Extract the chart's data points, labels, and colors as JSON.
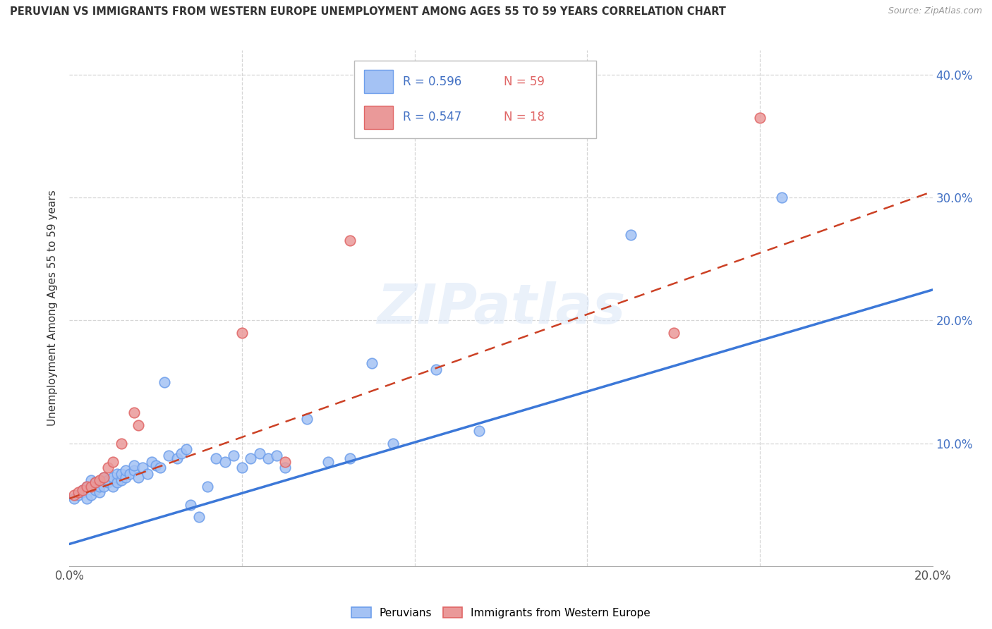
{
  "title": "PERUVIAN VS IMMIGRANTS FROM WESTERN EUROPE UNEMPLOYMENT AMONG AGES 55 TO 59 YEARS CORRELATION CHART",
  "source": "Source: ZipAtlas.com",
  "ylabel": "Unemployment Among Ages 55 to 59 years",
  "xlim": [
    0.0,
    0.2
  ],
  "ylim": [
    0.0,
    0.42
  ],
  "x_ticks": [
    0.0,
    0.04,
    0.08,
    0.12,
    0.16,
    0.2
  ],
  "x_tick_labels": [
    "0.0%",
    "",
    "",
    "",
    "",
    "20.0%"
  ],
  "y_ticks": [
    0.0,
    0.1,
    0.2,
    0.3,
    0.4
  ],
  "right_y_tick_labels": [
    "",
    "10.0%",
    "20.0%",
    "30.0%",
    "40.0%"
  ],
  "peruvian_color": "#a4c2f4",
  "immigrant_color": "#ea9999",
  "peruvian_edge_color": "#6d9eeb",
  "immigrant_edge_color": "#e06666",
  "peruvian_line_color": "#3c78d8",
  "immigrant_line_color": "#cc4125",
  "legend_r_peruvian": "0.596",
  "legend_n_peruvian": "59",
  "legend_r_immigrant": "0.547",
  "legend_n_immigrant": "18",
  "watermark": "ZIPatlas",
  "peruvian_scatter_x": [
    0.001,
    0.002,
    0.003,
    0.003,
    0.004,
    0.004,
    0.005,
    0.005,
    0.006,
    0.006,
    0.007,
    0.007,
    0.008,
    0.008,
    0.009,
    0.009,
    0.01,
    0.01,
    0.011,
    0.011,
    0.012,
    0.012,
    0.013,
    0.013,
    0.014,
    0.015,
    0.015,
    0.016,
    0.017,
    0.018,
    0.019,
    0.02,
    0.021,
    0.022,
    0.023,
    0.025,
    0.026,
    0.027,
    0.028,
    0.03,
    0.032,
    0.034,
    0.036,
    0.038,
    0.04,
    0.042,
    0.044,
    0.046,
    0.048,
    0.05,
    0.055,
    0.06,
    0.065,
    0.07,
    0.075,
    0.085,
    0.095,
    0.13,
    0.165
  ],
  "peruvian_scatter_y": [
    0.055,
    0.058,
    0.06,
    0.062,
    0.055,
    0.065,
    0.058,
    0.07,
    0.062,
    0.068,
    0.06,
    0.065,
    0.065,
    0.072,
    0.068,
    0.07,
    0.065,
    0.072,
    0.068,
    0.075,
    0.07,
    0.075,
    0.072,
    0.078,
    0.075,
    0.078,
    0.082,
    0.072,
    0.08,
    0.075,
    0.085,
    0.082,
    0.08,
    0.15,
    0.09,
    0.088,
    0.092,
    0.095,
    0.05,
    0.04,
    0.065,
    0.088,
    0.085,
    0.09,
    0.08,
    0.088,
    0.092,
    0.088,
    0.09,
    0.08,
    0.12,
    0.085,
    0.088,
    0.165,
    0.1,
    0.16,
    0.11,
    0.27,
    0.3
  ],
  "immigrant_scatter_x": [
    0.001,
    0.002,
    0.003,
    0.004,
    0.005,
    0.006,
    0.007,
    0.008,
    0.009,
    0.01,
    0.012,
    0.015,
    0.016,
    0.04,
    0.05,
    0.065,
    0.14,
    0.16
  ],
  "immigrant_scatter_y": [
    0.058,
    0.06,
    0.062,
    0.065,
    0.065,
    0.068,
    0.07,
    0.072,
    0.08,
    0.085,
    0.1,
    0.125,
    0.115,
    0.19,
    0.085,
    0.265,
    0.19,
    0.365
  ],
  "peruvian_trend_x": [
    0.0,
    0.2
  ],
  "peruvian_trend_y": [
    0.018,
    0.225
  ],
  "immigrant_trend_x": [
    0.0,
    0.2
  ],
  "immigrant_trend_y": [
    0.055,
    0.305
  ]
}
